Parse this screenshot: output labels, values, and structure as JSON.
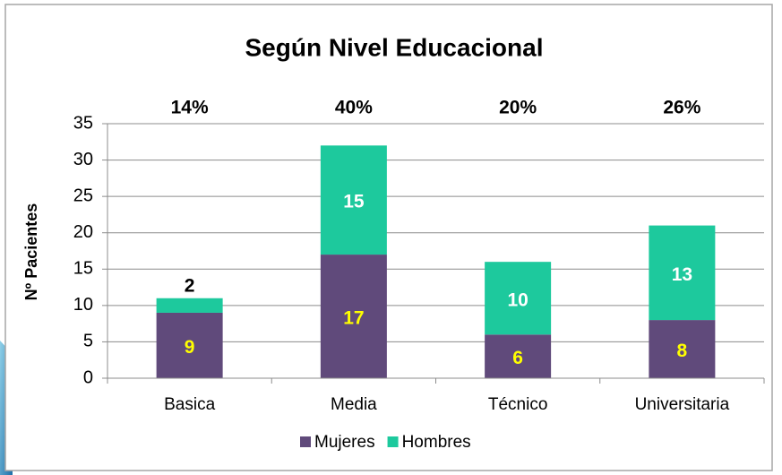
{
  "chart_data": {
    "type": "stacked_bar",
    "title": "Según Nivel Educacional",
    "y_label": "Nº Pacientes",
    "categories": [
      "Basica",
      "Media",
      "Técnico",
      "Universitaria"
    ],
    "annotations": [
      "14%",
      "40%",
      "20%",
      "26%"
    ],
    "series": [
      {
        "name": "Mujeres",
        "color": "#604a7b",
        "label_color": "#ffff00",
        "values": [
          9,
          17,
          6,
          8
        ]
      },
      {
        "name": "Hombres",
        "color": "#1dc99d",
        "label_color": "#ffffff",
        "values": [
          2,
          15,
          10,
          13
        ]
      }
    ],
    "ylim": [
      0,
      35
    ],
    "yticks": [
      0,
      5,
      10,
      15,
      20,
      25,
      30,
      35
    ],
    "grid": true,
    "legend": "bottom"
  }
}
